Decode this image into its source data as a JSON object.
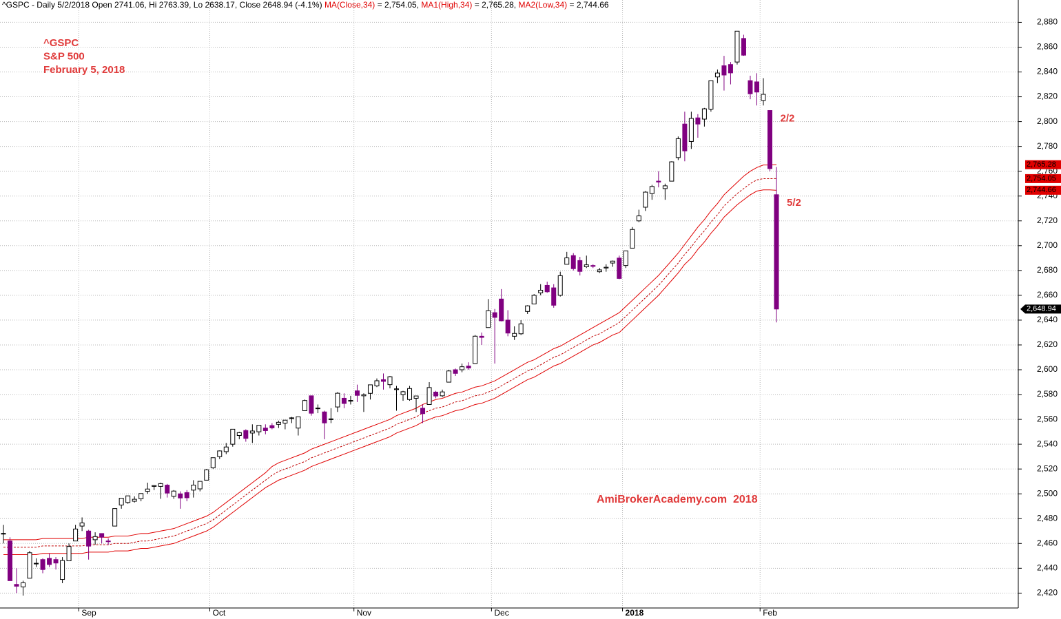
{
  "chart_data": {
    "type": "candlestick",
    "header": [
      {
        "text": "^GSPC - Daily 5/2/2018 Open 2741.06, Hi 2763.39, Lo 2638.17, Close 2648.94 (-4.1%) ",
        "color": "#000000"
      },
      {
        "text": "MA(Close,34)",
        "color": "#e00000"
      },
      {
        "text": " = 2,754.05, ",
        "color": "#000000"
      },
      {
        "text": "MA1(High,34)",
        "color": "#e00000"
      },
      {
        "text": " = 2,765.28, ",
        "color": "#000000"
      },
      {
        "text": "MA2(Low,34)",
        "color": "#e00000"
      },
      {
        "text": " = 2,744.66",
        "color": "#000000"
      }
    ],
    "title_lines": [
      "^GSPC",
      "S&P 500",
      "February 5, 2018"
    ],
    "watermark": "AmiBrokerAcademy.com  2018",
    "annotations": [
      {
        "text": "2/2",
        "index": 117
      },
      {
        "text": "5/2",
        "index": 118
      }
    ],
    "categories": [
      null,
      null,
      null,
      null,
      null,
      null,
      null,
      null,
      null,
      null,
      null,
      null,
      "Sep",
      null,
      null,
      null,
      null,
      null,
      null,
      null,
      null,
      null,
      null,
      null,
      null,
      null,
      null,
      null,
      null,
      null,
      null,
      null,
      "Oct",
      null,
      null,
      null,
      null,
      null,
      null,
      null,
      null,
      null,
      null,
      null,
      null,
      null,
      null,
      null,
      null,
      null,
      null,
      null,
      null,
      null,
      "Nov",
      null,
      null,
      null,
      null,
      null,
      null,
      null,
      null,
      null,
      null,
      null,
      null,
      null,
      null,
      null,
      null,
      null,
      null,
      null,
      null,
      "Dec",
      null,
      null,
      null,
      null,
      null,
      null,
      null,
      null,
      null,
      null,
      null,
      null,
      null,
      null,
      null,
      null,
      null,
      null,
      null,
      "2018",
      null,
      null,
      null,
      null,
      null,
      null,
      null,
      null,
      null,
      null,
      null,
      null,
      null,
      null,
      null,
      null,
      null,
      null,
      null,
      null,
      "Feb",
      null,
      null
    ],
    "up_color": "#ffffff",
    "down_color": "#800080",
    "candle_last_label": "2,648.94",
    "ohlc": [
      [
        2468,
        2475,
        2460,
        2468.11
      ],
      [
        2462,
        2465,
        2430,
        2430.01
      ],
      [
        2427,
        2440,
        2420,
        2425.55
      ],
      [
        2425,
        2430,
        2418,
        2428.37
      ],
      [
        2432,
        2454,
        2432,
        2452.51
      ],
      [
        2444,
        2448,
        2441,
        2444.04
      ],
      [
        2447,
        2448,
        2436,
        2438.97
      ],
      [
        2448,
        2452,
        2441,
        2443.05
      ],
      [
        2447,
        2449,
        2439,
        2444.24
      ],
      [
        2431,
        2449,
        2428,
        2446.3
      ],
      [
        2446,
        2460,
        2446,
        2457.59
      ],
      [
        2462,
        2475,
        2462,
        2471.65
      ],
      [
        2474,
        2481,
        2470,
        2476.55
      ],
      [
        2470,
        2471,
        2447,
        2457.85
      ],
      [
        2463,
        2469,
        2459,
        2465.54
      ],
      [
        2468,
        2468,
        2460,
        2465.1
      ],
      [
        2462,
        2464,
        2459,
        2461.43
      ],
      [
        2474,
        2488,
        2474,
        2488.11
      ],
      [
        2491,
        2496,
        2488,
        2496.48
      ],
      [
        2493,
        2498,
        2492,
        2498.37
      ],
      [
        2494,
        2498,
        2493,
        2495.62
      ],
      [
        2496,
        2500,
        2494,
        2500.23
      ],
      [
        2502,
        2509,
        2500,
        2503.87
      ],
      [
        2506,
        2507,
        2503,
        2506.65
      ],
      [
        2506,
        2509,
        2496,
        2508.24
      ],
      [
        2507,
        2508,
        2497,
        2500.6
      ],
      [
        2498,
        2503,
        2496,
        2502.22
      ],
      [
        2500,
        2502,
        2488,
        2496.66
      ],
      [
        2501,
        2503,
        2494,
        2496.84
      ],
      [
        2503,
        2511,
        2497,
        2507.04
      ],
      [
        2504,
        2510,
        2502,
        2510.06
      ],
      [
        2511,
        2520,
        2511,
        2519.36
      ],
      [
        2521,
        2529,
        2520,
        2529.12
      ],
      [
        2530,
        2535,
        2528,
        2534.58
      ],
      [
        2534,
        2541,
        2532,
        2537.74
      ],
      [
        2540,
        2552,
        2538,
        2552.07
      ],
      [
        2547,
        2550,
        2544,
        2549.33
      ],
      [
        2551,
        2552,
        2542,
        2544.73
      ],
      [
        2549,
        2556,
        2541,
        2550.64
      ],
      [
        2550,
        2555,
        2547,
        2555.24
      ],
      [
        2553,
        2556,
        2548,
        2550.93
      ],
      [
        2555,
        2557,
        2552,
        2553.17
      ],
      [
        2556,
        2559,
        2553,
        2557.64
      ],
      [
        2557,
        2559,
        2552,
        2559.36
      ],
      [
        2561,
        2562,
        2557,
        2561.26
      ],
      [
        2553,
        2562,
        2547,
        2562.1
      ],
      [
        2567,
        2576,
        2567,
        2575.21
      ],
      [
        2579,
        2579,
        2563,
        2564.98
      ],
      [
        2569,
        2572,
        2565,
        2569.13
      ],
      [
        2566,
        2567,
        2544,
        2557.15
      ],
      [
        2560,
        2569,
        2557,
        2560.4
      ],
      [
        2570,
        2582,
        2566,
        2581.07
      ],
      [
        2577,
        2581,
        2569,
        2572.83
      ],
      [
        2575,
        2579,
        2572,
        2575.26
      ],
      [
        2583,
        2588,
        2574,
        2579.36
      ],
      [
        2579,
        2581,
        2566,
        2579.85
      ],
      [
        2581,
        2588,
        2576,
        2587.84
      ],
      [
        2587,
        2593,
        2586,
        2591.13
      ],
      [
        2592,
        2597,
        2584,
        2590.64
      ],
      [
        2588,
        2595,
        2585,
        2594.38
      ],
      [
        2584,
        2587,
        2567,
        2584.62
      ],
      [
        2580,
        2583,
        2575,
        2582.3
      ],
      [
        2576,
        2587,
        2575,
        2584.84
      ],
      [
        2577,
        2579,
        2566,
        2578.87
      ],
      [
        2569,
        2572,
        2557,
        2564.62
      ],
      [
        2572,
        2590,
        2572,
        2585.64
      ],
      [
        2582,
        2583,
        2577,
        2578.85
      ],
      [
        2579,
        2584,
        2578,
        2582.14
      ],
      [
        2590,
        2600,
        2590,
        2599.03
      ],
      [
        2600,
        2601,
        2595,
        2597.08
      ],
      [
        2600,
        2605,
        2598,
        2602.42
      ],
      [
        2603,
        2606,
        2600,
        2601.42
      ],
      [
        2605,
        2628,
        2605,
        2627.04
      ],
      [
        2627,
        2630,
        2620,
        2626.07
      ],
      [
        2634,
        2657,
        2634,
        2647.58
      ],
      [
        2646,
        2649,
        2605,
        2642.22
      ],
      [
        2657,
        2665,
        2639,
        2639.44
      ],
      [
        2640,
        2648,
        2627,
        2629.57
      ],
      [
        2627,
        2635,
        2624,
        2629.27
      ],
      [
        2629,
        2640,
        2628,
        2636.98
      ],
      [
        2647,
        2652,
        2645,
        2651.5
      ],
      [
        2653,
        2661,
        2653,
        2659.99
      ],
      [
        2662,
        2669,
        2660,
        2664.11
      ],
      [
        2668,
        2671,
        2662,
        2662.85
      ],
      [
        2666,
        2669,
        2650,
        2652.01
      ],
      [
        2660,
        2679,
        2659,
        2675.81
      ],
      [
        2685,
        2695,
        2685,
        2690.16
      ],
      [
        2692,
        2694,
        2680,
        2681.47
      ],
      [
        2688,
        2691,
        2676,
        2679.25
      ],
      [
        2683,
        2692,
        2682,
        2684.57
      ],
      [
        2684,
        2685,
        2682,
        2683.34
      ],
      [
        2679,
        2682,
        2678,
        2680.5
      ],
      [
        2682,
        2685,
        2679,
        2682.62
      ],
      [
        2686,
        2688,
        2683,
        2687.54
      ],
      [
        2690,
        2692,
        2673,
        2673.61
      ],
      [
        2684,
        2696,
        2682,
        2695.81
      ],
      [
        2698,
        2715,
        2698,
        2713.06
      ],
      [
        2720,
        2729,
        2719,
        2723.99
      ],
      [
        2731,
        2744,
        2728,
        2743.15
      ],
      [
        2742,
        2749,
        2737,
        2747.71
      ],
      [
        2752,
        2760,
        2747,
        2751.29
      ],
      [
        2746,
        2750,
        2737,
        2748.23
      ],
      [
        2752,
        2768,
        2752,
        2767.56
      ],
      [
        2771,
        2788,
        2769,
        2786.24
      ],
      [
        2798,
        2808,
        2768,
        2776.42
      ],
      [
        2784,
        2808,
        2778,
        2802.56
      ],
      [
        2803,
        2806,
        2787,
        2798.03
      ],
      [
        2802,
        2811,
        2796,
        2810.3
      ],
      [
        2810,
        2833,
        2808,
        2832.97
      ],
      [
        2836,
        2842,
        2831,
        2839.13
      ],
      [
        2845,
        2853,
        2825,
        2837.54
      ],
      [
        2846,
        2848,
        2830,
        2839.25
      ],
      [
        2848,
        2873,
        2846,
        2872.87
      ],
      [
        2867,
        2870,
        2853,
        2853.53
      ],
      [
        2833,
        2837,
        2818,
        2822.43
      ],
      [
        2832,
        2839,
        2813,
        2823.81
      ],
      [
        2817,
        2835,
        2813,
        2821.98
      ],
      [
        2808.92,
        2808.92,
        2759.97,
        2762.13
      ],
      [
        2741.06,
        2763.39,
        2638.17,
        2648.94
      ]
    ],
    "series": [
      {
        "name": "MA1(High,34)",
        "color": "#e00000",
        "dash": false,
        "last_label": "2,765.28",
        "values": [
          2463,
          2463,
          2463,
          2463,
          2463,
          2463,
          2464,
          2464,
          2464,
          2464,
          2464,
          2464,
          2464,
          2465,
          2465,
          2465,
          2465,
          2466,
          2466,
          2466,
          2467,
          2468,
          2468,
          2469,
          2470,
          2471,
          2472,
          2474,
          2476,
          2478,
          2480,
          2482,
          2485,
          2489,
          2493,
          2497,
          2501,
          2505,
          2509,
          2513,
          2517,
          2522,
          2525,
          2527,
          2529,
          2531,
          2533,
          2536,
          2538,
          2540,
          2542,
          2544,
          2546,
          2548,
          2550,
          2552,
          2554,
          2556,
          2558,
          2560,
          2563,
          2565,
          2567,
          2569,
          2572,
          2574,
          2576,
          2577,
          2579,
          2581,
          2582,
          2584,
          2586,
          2587,
          2589,
          2591,
          2594,
          2597,
          2600,
          2603,
          2606,
          2608,
          2611,
          2614,
          2617,
          2619,
          2622,
          2625,
          2628,
          2631,
          2634,
          2637,
          2640,
          2643,
          2646,
          2651,
          2656,
          2661,
          2666,
          2671,
          2676,
          2682,
          2688,
          2694,
          2701,
          2708,
          2715,
          2721,
          2728,
          2734,
          2741,
          2746,
          2751,
          2756,
          2760,
          2763,
          2765,
          2765,
          2765.28
        ]
      },
      {
        "name": "MA(Close,34)",
        "color": "#c00000",
        "dash": true,
        "last_label": "2,754.05",
        "values": [
          2457,
          2457,
          2457,
          2457,
          2457,
          2457,
          2458,
          2458,
          2458,
          2458,
          2458,
          2458,
          2458,
          2459,
          2459,
          2459,
          2459,
          2460,
          2460,
          2460,
          2461,
          2462,
          2462,
          2463,
          2464,
          2465,
          2466,
          2468,
          2470,
          2472,
          2474,
          2476,
          2479,
          2483,
          2487,
          2491,
          2495,
          2499,
          2503,
          2507,
          2511,
          2515,
          2518,
          2520,
          2522,
          2524,
          2526,
          2529,
          2531,
          2533,
          2535,
          2537,
          2539,
          2541,
          2543,
          2545,
          2547,
          2549,
          2551,
          2553,
          2556,
          2558,
          2560,
          2562,
          2565,
          2567,
          2569,
          2570,
          2572,
          2574,
          2575,
          2577,
          2579,
          2580,
          2582,
          2584,
          2587,
          2590,
          2593,
          2596,
          2599,
          2601,
          2604,
          2607,
          2610,
          2612,
          2615,
          2618,
          2621,
          2624,
          2627,
          2629,
          2632,
          2635,
          2638,
          2643,
          2648,
          2653,
          2658,
          2663,
          2668,
          2674,
          2680,
          2686,
          2693,
          2699,
          2706,
          2712,
          2719,
          2725,
          2732,
          2737,
          2742,
          2746,
          2750,
          2753,
          2754,
          2754,
          2754.05
        ]
      },
      {
        "name": "MA2(Low,34)",
        "color": "#e00000",
        "dash": false,
        "last_label": "2,744.66",
        "values": [
          2451,
          2451,
          2451,
          2451,
          2451,
          2451,
          2452,
          2452,
          2452,
          2452,
          2452,
          2452,
          2452,
          2453,
          2453,
          2453,
          2453,
          2454,
          2454,
          2454,
          2455,
          2456,
          2456,
          2457,
          2458,
          2459,
          2460,
          2462,
          2464,
          2466,
          2468,
          2470,
          2473,
          2477,
          2481,
          2485,
          2489,
          2493,
          2497,
          2501,
          2505,
          2508,
          2511,
          2513,
          2515,
          2517,
          2519,
          2522,
          2524,
          2526,
          2528,
          2530,
          2532,
          2534,
          2536,
          2538,
          2540,
          2542,
          2544,
          2546,
          2549,
          2551,
          2553,
          2555,
          2558,
          2560,
          2562,
          2563,
          2565,
          2567,
          2568,
          2570,
          2572,
          2573,
          2575,
          2577,
          2580,
          2583,
          2586,
          2589,
          2592,
          2594,
          2597,
          2600,
          2603,
          2605,
          2608,
          2611,
          2614,
          2617,
          2620,
          2622,
          2625,
          2628,
          2630,
          2635,
          2640,
          2645,
          2650,
          2655,
          2660,
          2666,
          2672,
          2678,
          2685,
          2690,
          2697,
          2703,
          2710,
          2716,
          2723,
          2728,
          2733,
          2737,
          2741,
          2744,
          2745,
          2745,
          2744.66
        ]
      }
    ],
    "ylim": [
      2408,
      2898
    ],
    "yticks": [
      {
        "value": 2420,
        "label": "2,420"
      },
      {
        "value": 2440,
        "label": "2,440"
      },
      {
        "value": 2460,
        "label": "2,460"
      },
      {
        "value": 2480,
        "label": "2,480"
      },
      {
        "value": 2500,
        "label": "2,500"
      },
      {
        "value": 2520,
        "label": "2,520"
      },
      {
        "value": 2540,
        "label": "2,540"
      },
      {
        "value": 2560,
        "label": "2,560"
      },
      {
        "value": 2580,
        "label": "2,580"
      },
      {
        "value": 2600,
        "label": "2,600"
      },
      {
        "value": 2620,
        "label": "2,620"
      },
      {
        "value": 2640,
        "label": "2,640"
      },
      {
        "value": 2660,
        "label": "2,660"
      },
      {
        "value": 2680,
        "label": "2,680"
      },
      {
        "value": 2700,
        "label": "2,700"
      },
      {
        "value": 2720,
        "label": "2,720"
      },
      {
        "value": 2740,
        "label": "2,740"
      },
      {
        "value": 2760,
        "label": "2,760"
      },
      {
        "value": 2780,
        "label": "2,780"
      },
      {
        "value": 2800,
        "label": "2,800"
      },
      {
        "value": 2820,
        "label": "2,820"
      },
      {
        "value": 2840,
        "label": "2,840"
      },
      {
        "value": 2860,
        "label": "2,860"
      },
      {
        "value": 2880,
        "label": "2,880"
      }
    ],
    "grid": true
  }
}
